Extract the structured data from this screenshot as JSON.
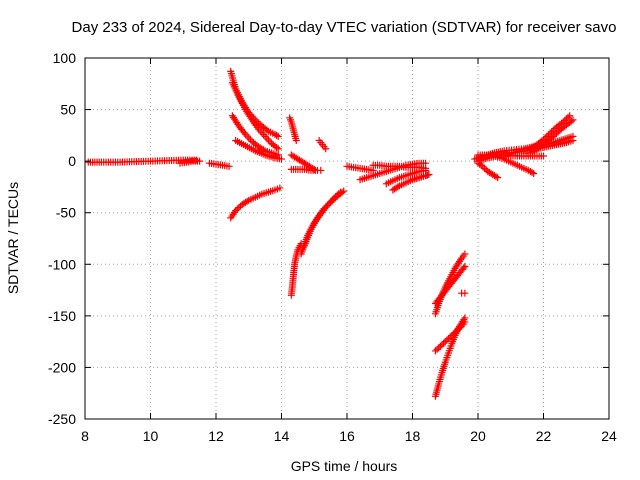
{
  "chart_data": {
    "type": "scatter",
    "title": "Day 233 of 2024, Sidereal Day-to-day VTEC variation (SDTVAR) for receiver savo",
    "xlabel": "GPS time / hours",
    "ylabel": "SDTVAR / TECUs",
    "xlim": [
      8,
      24
    ],
    "ylim": [
      -250,
      100
    ],
    "x_ticks": [
      8,
      10,
      12,
      14,
      16,
      18,
      20,
      22,
      24
    ],
    "y_ticks": [
      100,
      50,
      0,
      -50,
      -100,
      -150,
      -200,
      -250
    ],
    "grid": true,
    "marker": "plus",
    "color": "#ff0000",
    "series": [
      {
        "x": [
          8.1,
          8.5,
          9.0,
          9.5,
          10.0,
          10.5,
          11.0,
          11.4
        ],
        "y": [
          -1,
          -1,
          -1,
          -0.5,
          0,
          0.5,
          1,
          1
        ]
      },
      {
        "x": [
          10.9,
          11.1,
          11.3,
          11.5
        ],
        "y": [
          -2,
          -1,
          0,
          0
        ]
      },
      {
        "x": [
          11.8,
          12.0,
          12.2,
          12.4
        ],
        "y": [
          -2,
          -3,
          -4,
          -5
        ]
      },
      {
        "x": [
          12.45,
          12.6,
          12.8,
          13.0,
          13.2,
          13.4,
          13.6,
          13.8,
          13.9
        ],
        "y": [
          87,
          70,
          57,
          47,
          40,
          34,
          29,
          26,
          24
        ]
      },
      {
        "x": [
          12.5,
          12.7,
          12.9,
          13.1,
          13.3,
          13.5,
          13.7,
          13.9
        ],
        "y": [
          76,
          62,
          50,
          40,
          31,
          24,
          17,
          12
        ]
      },
      {
        "x": [
          12.5,
          12.7,
          12.9,
          13.1,
          13.3,
          13.5,
          13.7,
          13.9
        ],
        "y": [
          44,
          34,
          26,
          19,
          14,
          10,
          8,
          6
        ]
      },
      {
        "x": [
          12.6,
          12.9,
          13.2,
          13.5,
          13.8,
          14.0
        ],
        "y": [
          20,
          15,
          10,
          6,
          3,
          2
        ]
      },
      {
        "x": [
          12.45,
          12.6,
          12.8,
          13.0,
          13.2,
          13.4,
          13.6,
          13.8,
          13.95
        ],
        "y": [
          -55,
          -48,
          -42,
          -38,
          -35,
          -32,
          -30,
          -28,
          -26
        ]
      },
      {
        "x": [
          14.25,
          14.3,
          14.35,
          14.4,
          14.45
        ],
        "y": [
          42,
          38,
          32,
          26,
          20
        ]
      },
      {
        "x": [
          14.3,
          14.4,
          14.5,
          14.6,
          14.7,
          14.8,
          14.9,
          15.0
        ],
        "y": [
          6,
          4,
          2,
          0,
          -2,
          -4,
          -6,
          -8
        ]
      },
      {
        "x": [
          14.3,
          14.5,
          14.7,
          14.9,
          15.1,
          15.2
        ],
        "y": [
          -8,
          -8,
          -8,
          -9,
          -9,
          -9
        ]
      },
      {
        "x": [
          15.15,
          15.25,
          15.35
        ],
        "y": [
          20,
          16,
          12
        ]
      },
      {
        "x": [
          14.3,
          14.33,
          14.36,
          14.4,
          14.45,
          14.5,
          14.6
        ],
        "y": [
          -130,
          -122,
          -112,
          -100,
          -92,
          -86,
          -80
        ]
      },
      {
        "x": [
          14.6,
          14.8,
          15.0,
          15.2,
          15.4,
          15.6,
          15.8
        ],
        "y": [
          -90,
          -72,
          -60,
          -51,
          -43,
          -36,
          -30
        ]
      },
      {
        "x": [
          14.7,
          14.9,
          15.1,
          15.3,
          15.5,
          15.7,
          15.9
        ],
        "y": [
          -82,
          -66,
          -55,
          -46,
          -40,
          -34,
          -29
        ]
      },
      {
        "x": [
          16.0,
          16.2,
          16.4,
          16.6,
          16.8
        ],
        "y": [
          -5,
          -6,
          -7,
          -8,
          -9
        ]
      },
      {
        "x": [
          16.4,
          16.6,
          16.8,
          17.0,
          17.2,
          17.4,
          17.6,
          17.8,
          18.0,
          18.2,
          18.4
        ],
        "y": [
          -18,
          -16,
          -14,
          -12,
          -10,
          -8,
          -6,
          -4,
          -3,
          -2,
          -2
        ]
      },
      {
        "x": [
          16.8,
          17.0,
          17.2,
          17.4,
          17.6,
          17.8,
          18.0,
          18.2,
          18.4
        ],
        "y": [
          -4,
          -4,
          -5,
          -5,
          -5,
          -6,
          -6,
          -6,
          -7
        ]
      },
      {
        "x": [
          17.2,
          17.4,
          17.6,
          17.8,
          18.0,
          18.2,
          18.4
        ],
        "y": [
          -22,
          -19,
          -16,
          -14,
          -12,
          -10,
          -9
        ]
      },
      {
        "x": [
          17.4,
          17.6,
          17.8,
          18.0,
          18.2,
          18.4,
          18.5
        ],
        "y": [
          -28,
          -24,
          -21,
          -18,
          -16,
          -14,
          -13
        ]
      },
      {
        "x": [
          18.0,
          18.2,
          18.4,
          18.5
        ],
        "y": [
          -18,
          -16,
          -14,
          -13
        ]
      },
      {
        "x": [
          18.7,
          18.8,
          18.9,
          19.0,
          19.1,
          19.2,
          19.3,
          19.4,
          19.5,
          19.6
        ],
        "y": [
          -148,
          -138,
          -130,
          -122,
          -116,
          -110,
          -104,
          -99,
          -94,
          -90
        ]
      },
      {
        "x": [
          18.7,
          18.85,
          19.0,
          19.15,
          19.3,
          19.45,
          19.6
        ],
        "y": [
          -138,
          -132,
          -126,
          -120,
          -114,
          -108,
          -102
        ]
      },
      {
        "x": [
          19.5,
          19.6
        ],
        "y": [
          -128,
          -128
        ]
      },
      {
        "x": [
          18.7,
          18.8,
          18.9,
          19.0,
          19.1,
          19.2,
          19.3,
          19.4,
          19.5,
          19.6
        ],
        "y": [
          -228,
          -216,
          -205,
          -195,
          -186,
          -177,
          -169,
          -162,
          -157,
          -152
        ]
      },
      {
        "x": [
          18.7,
          18.9,
          19.1,
          19.3,
          19.5,
          19.6
        ],
        "y": [
          -184,
          -178,
          -172,
          -166,
          -160,
          -156
        ]
      },
      {
        "x": [
          19.9,
          20.2,
          20.5,
          20.8,
          21.1,
          21.4,
          21.7,
          22.0,
          22.3,
          22.6,
          22.9
        ],
        "y": [
          2,
          5,
          8,
          10,
          11,
          12,
          14,
          16,
          18,
          21,
          24
        ]
      },
      {
        "x": [
          20.0,
          20.3,
          20.6,
          20.9,
          21.2,
          21.5,
          21.8,
          22.1,
          22.4,
          22.7,
          22.9
        ],
        "y": [
          0,
          3,
          5,
          7,
          9,
          11,
          12,
          14,
          16,
          18,
          20
        ]
      },
      {
        "x": [
          21.5,
          21.8,
          22.0,
          22.2,
          22.4,
          22.6,
          22.8
        ],
        "y": [
          10,
          16,
          21,
          27,
          33,
          38,
          44
        ]
      },
      {
        "x": [
          21.6,
          21.9,
          22.1,
          22.3,
          22.5,
          22.7,
          22.9
        ],
        "y": [
          8,
          14,
          19,
          24,
          30,
          35,
          40
        ]
      },
      {
        "x": [
          20.0,
          20.1,
          20.2,
          20.3,
          20.4,
          20.5,
          20.6
        ],
        "y": [
          -2,
          -4,
          -7,
          -10,
          -12,
          -14,
          -16
        ]
      },
      {
        "x": [
          20.6,
          20.8,
          21.0,
          21.2,
          21.4,
          21.6,
          21.7
        ],
        "y": [
          4,
          2,
          -1,
          -4,
          -7,
          -10,
          -12
        ]
      },
      {
        "x": [
          20.0,
          20.4,
          20.8,
          21.2,
          21.6,
          22.0
        ],
        "y": [
          6,
          6,
          6,
          5,
          5,
          5
        ]
      }
    ]
  }
}
